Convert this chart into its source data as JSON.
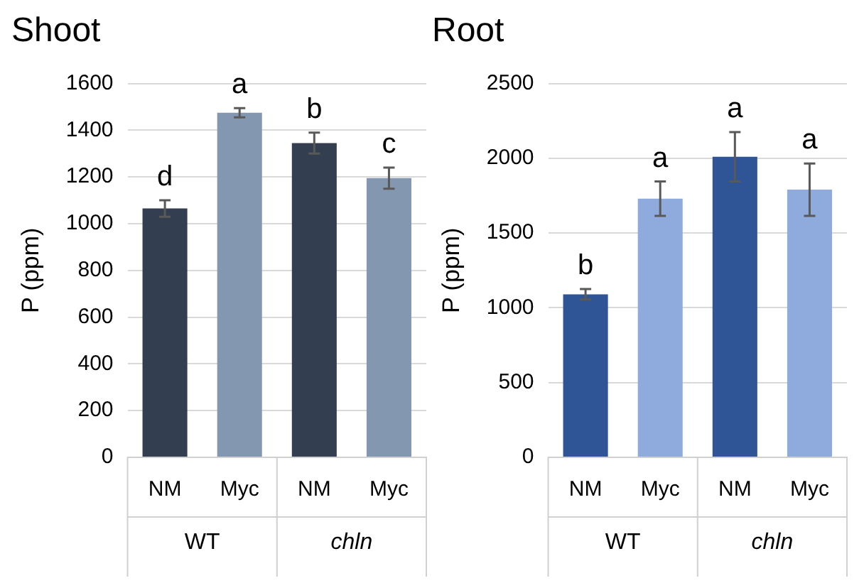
{
  "chart_data": [
    {
      "type": "bar",
      "title": "Shoot",
      "ylabel": "P (ppm)",
      "categories": [
        "NM",
        "Myc",
        "NM",
        "Myc"
      ],
      "annotations": [
        "WT",
        "chln"
      ],
      "values": [
        1065,
        1475,
        1345,
        1195
      ],
      "colors": [
        "#333f50",
        "#8497b0",
        "#333f50",
        "#8497b0"
      ],
      "errors": [
        35,
        20,
        45,
        45
      ],
      "value_labels": [
        "d",
        "a",
        "b",
        "c"
      ],
      "ylim": [
        0,
        1600
      ],
      "yticks": [
        0,
        200,
        400,
        600,
        800,
        1000,
        1200,
        1400,
        1600
      ],
      "grid": "y",
      "legend": false
    },
    {
      "type": "bar",
      "title": "Root",
      "ylabel": "P (ppm)",
      "categories": [
        "NM",
        "Myc",
        "NM",
        "Myc"
      ],
      "annotations": [
        "WT",
        "chln"
      ],
      "values": [
        1090,
        1730,
        2010,
        1790
      ],
      "colors": [
        "#2f5597",
        "#8faadc",
        "#2f5597",
        "#8faadc"
      ],
      "errors": [
        35,
        115,
        165,
        175
      ],
      "value_labels": [
        "b",
        "a",
        "a",
        "a"
      ],
      "ylim": [
        0,
        2500
      ],
      "yticks": [
        0,
        500,
        1000,
        1500,
        2000,
        2500
      ],
      "grid": "y",
      "legend": false
    }
  ]
}
